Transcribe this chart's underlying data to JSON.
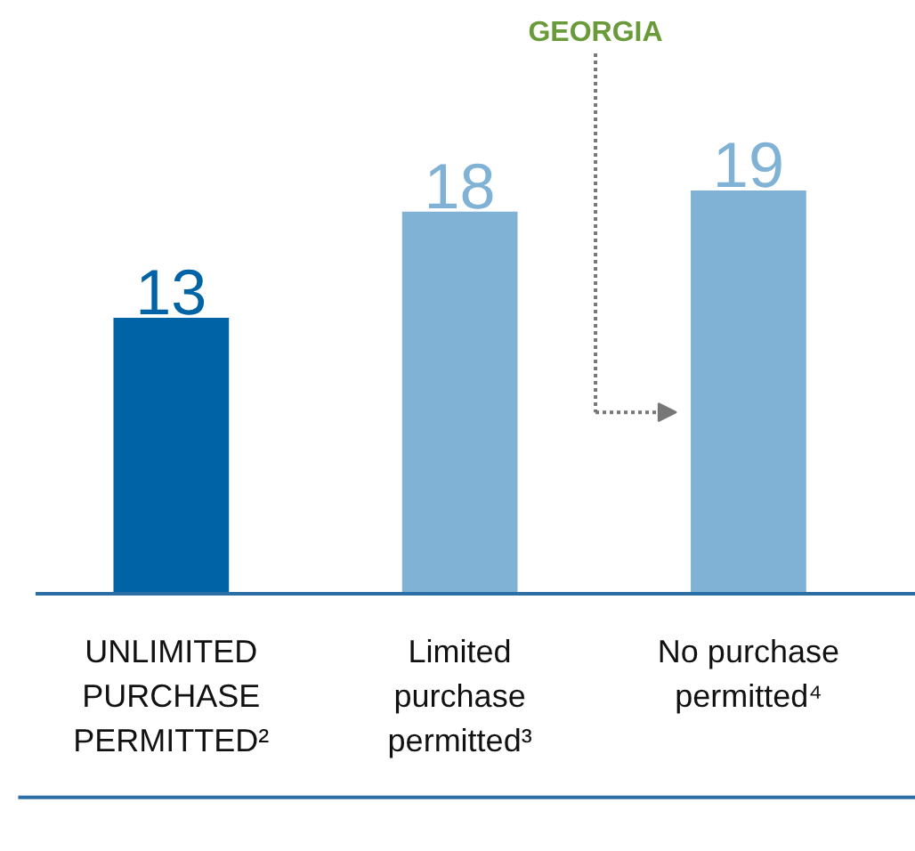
{
  "chart_data": {
    "type": "bar",
    "categories": [
      "UNLIMITED PURCHASE PERMITTED²",
      "Limited purchase permitted³",
      "No purchase permitted⁴"
    ],
    "values": [
      13,
      18,
      19
    ],
    "colors": [
      "#0063a6",
      "#7fb2d5",
      "#7fb2d5"
    ],
    "data_labels": true,
    "annotations": [
      "GEORGIA"
    ]
  }
}
